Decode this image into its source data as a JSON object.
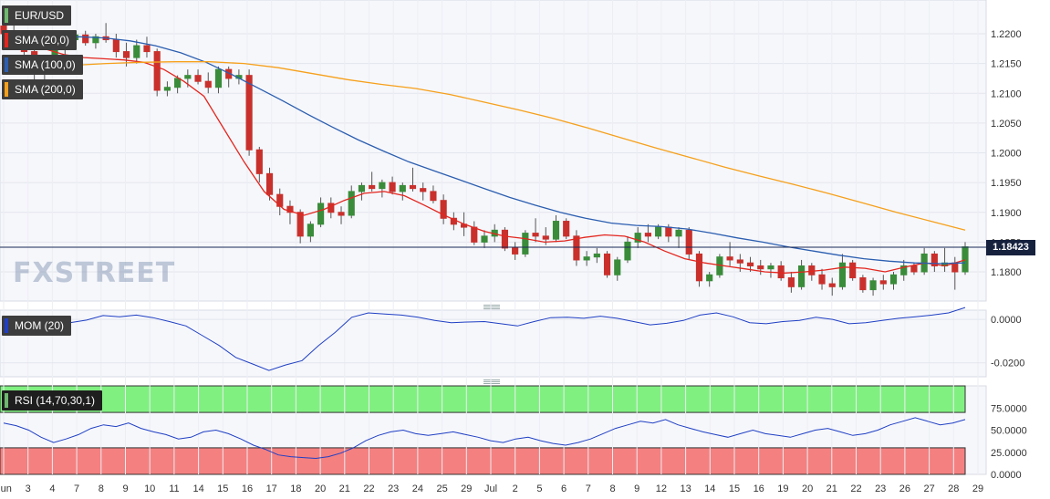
{
  "chart_data": {
    "type": "candlestick",
    "symbol": "EUR/USD",
    "last_price": "1.18423",
    "y_ticks": [
      "1.2200",
      "1.2150",
      "1.2100",
      "1.2050",
      "1.2000",
      "1.1950",
      "1.1900",
      "1.1850",
      "1.1800"
    ],
    "x_labels": [
      "Jun",
      "3",
      "4",
      "7",
      "8",
      "9",
      "10",
      "11",
      "14",
      "15",
      "16",
      "17",
      "18",
      "20",
      "21",
      "22",
      "23",
      "24",
      "25",
      "29",
      "Jul",
      "2",
      "5",
      "6",
      "7",
      "8",
      "9",
      "12",
      "13",
      "14",
      "15",
      "16",
      "19",
      "20",
      "21",
      "22",
      "23",
      "26",
      "27",
      "28",
      "29"
    ],
    "ohlc": [
      [
        1.2213,
        1.2223,
        1.219,
        1.22
      ],
      [
        1.22,
        1.2215,
        1.218,
        1.2195
      ],
      [
        1.2195,
        1.2205,
        1.216,
        1.217
      ],
      [
        1.217,
        1.2185,
        1.212,
        1.2135
      ],
      [
        1.2135,
        1.216,
        1.211,
        1.215
      ],
      [
        1.215,
        1.219,
        1.214,
        1.218
      ],
      [
        1.218,
        1.22,
        1.2165,
        1.219
      ],
      [
        1.219,
        1.2205,
        1.2175,
        1.2198
      ],
      [
        1.2198,
        1.2205,
        1.218,
        1.2185
      ],
      [
        1.2185,
        1.22,
        1.2175,
        1.2195
      ],
      [
        1.2195,
        1.2218,
        1.2185,
        1.219
      ],
      [
        1.219,
        1.22,
        1.216,
        1.217
      ],
      [
        1.217,
        1.2185,
        1.2145,
        1.216
      ],
      [
        1.216,
        1.219,
        1.215,
        1.218
      ],
      [
        1.218,
        1.2195,
        1.216,
        1.217
      ],
      [
        1.217,
        1.2175,
        1.2095,
        1.2105
      ],
      [
        1.2105,
        1.212,
        1.2095,
        1.211
      ],
      [
        1.211,
        1.213,
        1.21,
        1.2125
      ],
      [
        1.2125,
        1.214,
        1.211,
        1.213
      ],
      [
        1.213,
        1.214,
        1.2115,
        1.212
      ],
      [
        1.212,
        1.2135,
        1.21,
        1.211
      ],
      [
        1.211,
        1.2145,
        1.21,
        1.214
      ],
      [
        1.214,
        1.2145,
        1.211,
        1.2125
      ],
      [
        1.2125,
        1.214,
        1.2115,
        1.213
      ],
      [
        1.213,
        1.214,
        1.1995,
        1.2005
      ],
      [
        1.2005,
        1.201,
        1.195,
        1.1965
      ],
      [
        1.1965,
        1.1975,
        1.192,
        1.193
      ],
      [
        1.193,
        1.194,
        1.1895,
        1.191
      ],
      [
        1.191,
        1.192,
        1.188,
        1.19
      ],
      [
        1.19,
        1.1905,
        1.1848,
        1.186
      ],
      [
        1.186,
        1.1885,
        1.185,
        1.188
      ],
      [
        1.188,
        1.1925,
        1.1875,
        1.1915
      ],
      [
        1.1915,
        1.1925,
        1.189,
        1.19
      ],
      [
        1.19,
        1.191,
        1.188,
        1.1895
      ],
      [
        1.1895,
        1.1945,
        1.189,
        1.1935
      ],
      [
        1.1935,
        1.195,
        1.192,
        1.1945
      ],
      [
        1.1945,
        1.1968,
        1.1935,
        1.194
      ],
      [
        1.194,
        1.1955,
        1.1925,
        1.195
      ],
      [
        1.195,
        1.196,
        1.193,
        1.1935
      ],
      [
        1.1935,
        1.195,
        1.192,
        1.1945
      ],
      [
        1.1945,
        1.1975,
        1.1935,
        1.194
      ],
      [
        1.194,
        1.195,
        1.192,
        1.1935
      ],
      [
        1.1935,
        1.1945,
        1.1915,
        1.192
      ],
      [
        1.192,
        1.193,
        1.188,
        1.189
      ],
      [
        1.189,
        1.19,
        1.187,
        1.188
      ],
      [
        1.188,
        1.19,
        1.186,
        1.1875
      ],
      [
        1.1875,
        1.1885,
        1.1845,
        1.185
      ],
      [
        1.185,
        1.187,
        1.184,
        1.186
      ],
      [
        1.186,
        1.188,
        1.185,
        1.187
      ],
      [
        1.187,
        1.1875,
        1.1835,
        1.184
      ],
      [
        1.184,
        1.185,
        1.182,
        1.183
      ],
      [
        1.183,
        1.187,
        1.1825,
        1.1865
      ],
      [
        1.1865,
        1.189,
        1.185,
        1.186
      ],
      [
        1.186,
        1.1875,
        1.1845,
        1.1855
      ],
      [
        1.1855,
        1.1895,
        1.185,
        1.1885
      ],
      [
        1.1885,
        1.189,
        1.1855,
        1.186
      ],
      [
        1.186,
        1.187,
        1.181,
        1.182
      ],
      [
        1.182,
        1.1835,
        1.181,
        1.1825
      ],
      [
        1.1825,
        1.184,
        1.1815,
        1.183
      ],
      [
        1.183,
        1.1835,
        1.179,
        1.1795
      ],
      [
        1.1795,
        1.1825,
        1.1785,
        1.182
      ],
      [
        1.182,
        1.186,
        1.1815,
        1.185
      ],
      [
        1.185,
        1.1875,
        1.184,
        1.1865
      ],
      [
        1.1865,
        1.188,
        1.185,
        1.186
      ],
      [
        1.186,
        1.188,
        1.1855,
        1.1875
      ],
      [
        1.1875,
        1.188,
        1.185,
        1.186
      ],
      [
        1.186,
        1.1875,
        1.184,
        1.187
      ],
      [
        1.187,
        1.1875,
        1.182,
        1.183
      ],
      [
        1.183,
        1.1835,
        1.1775,
        1.1785
      ],
      [
        1.1785,
        1.18,
        1.1775,
        1.1795
      ],
      [
        1.1795,
        1.183,
        1.179,
        1.1825
      ],
      [
        1.1825,
        1.185,
        1.181,
        1.182
      ],
      [
        1.182,
        1.183,
        1.18,
        1.1815
      ],
      [
        1.1815,
        1.1825,
        1.18,
        1.181
      ],
      [
        1.181,
        1.182,
        1.1795,
        1.1805
      ],
      [
        1.1805,
        1.1815,
        1.179,
        1.181
      ],
      [
        1.181,
        1.1818,
        1.1785,
        1.179
      ],
      [
        1.179,
        1.18,
        1.1765,
        1.1775
      ],
      [
        1.1775,
        1.182,
        1.177,
        1.181
      ],
      [
        1.181,
        1.1815,
        1.1785,
        1.1795
      ],
      [
        1.1795,
        1.1805,
        1.177,
        1.178
      ],
      [
        1.178,
        1.179,
        1.176,
        1.1775
      ],
      [
        1.1775,
        1.183,
        1.177,
        1.1815
      ],
      [
        1.1815,
        1.182,
        1.1785,
        1.179
      ],
      [
        1.179,
        1.1795,
        1.1765,
        1.177
      ],
      [
        1.177,
        1.179,
        1.176,
        1.1785
      ],
      [
        1.1785,
        1.1795,
        1.177,
        1.178
      ],
      [
        1.178,
        1.18,
        1.177,
        1.1795
      ],
      [
        1.1795,
        1.182,
        1.1785,
        1.181
      ],
      [
        1.181,
        1.1815,
        1.1795,
        1.18
      ],
      [
        1.18,
        1.184,
        1.1795,
        1.183
      ],
      [
        1.183,
        1.1835,
        1.18,
        1.181
      ],
      [
        1.181,
        1.184,
        1.18,
        1.1815
      ],
      [
        1.1815,
        1.1825,
        1.177,
        1.18
      ],
      [
        1.18,
        1.185,
        1.1795,
        1.1842
      ]
    ],
    "series": [
      {
        "name": "SMA (20,0)",
        "color": "#e3261f",
        "values": [
          1.2205,
          1.219,
          1.2175,
          1.2165,
          1.216,
          1.2158,
          1.2156,
          1.2152,
          1.214,
          1.212,
          1.2095,
          1.204,
          1.1985,
          1.1935,
          1.1905,
          1.1895,
          1.1905,
          1.192,
          1.1932,
          1.1935,
          1.1928,
          1.1912,
          1.1895,
          1.188,
          1.1868,
          1.186,
          1.1856,
          1.185,
          1.1852,
          1.1858,
          1.1862,
          1.186,
          1.185,
          1.1835,
          1.1822,
          1.1815,
          1.181,
          1.1805,
          1.18,
          1.1798,
          1.18,
          1.1803,
          1.1808,
          1.1806,
          1.18,
          1.1808,
          1.1815,
          1.181,
          1.182
        ]
      },
      {
        "name": "SMA (100,0)",
        "color": "#2b5eb0",
        "values": [
          1.218,
          1.2188,
          1.2192,
          1.2195,
          1.2193,
          1.2188,
          1.218,
          1.2168,
          1.2152,
          1.2132,
          1.211,
          1.2088,
          1.2065,
          1.2043,
          1.2022,
          1.2003,
          1.1985,
          1.197,
          1.1955,
          1.194,
          1.1925,
          1.1912,
          1.19,
          1.189,
          1.1882,
          1.1878,
          1.1876,
          1.1872,
          1.1865,
          1.1857,
          1.185,
          1.1842,
          1.1835,
          1.1828,
          1.1822,
          1.1818,
          1.1815,
          1.1814,
          1.1815
        ]
      },
      {
        "name": "SMA (200,0)",
        "color": "#f6a01a",
        "values": [
          1.2137,
          1.2142,
          1.2147,
          1.215,
          1.2152,
          1.2153,
          1.2153,
          1.215,
          1.2143,
          1.2133,
          1.2123,
          1.2115,
          1.2108,
          1.2098,
          1.2085,
          1.2072,
          1.2058,
          1.2042,
          1.2025,
          1.2008,
          1.1992,
          1.1976,
          1.1961,
          1.1947,
          1.1932,
          1.1916,
          1.19,
          1.1885,
          1.187
        ]
      }
    ],
    "momentum": {
      "label": "MOM (20)",
      "y_ticks": [
        "0.0000",
        "-0.0200"
      ],
      "values": [
        0.0012,
        0.0005,
        -0.0008,
        -0.0022,
        -0.0015,
        -0.0003,
        0.0018,
        0.0012,
        0.002,
        0.0008,
        -0.001,
        -0.003,
        -0.0075,
        -0.012,
        -0.0175,
        -0.0205,
        -0.0235,
        -0.021,
        -0.019,
        -0.012,
        -0.006,
        0.001,
        0.003,
        0.0025,
        0.002,
        0.001,
        -0.0005,
        -0.0015,
        -0.0012,
        -0.001,
        -0.002,
        -0.003,
        -0.001,
        0.0008,
        0.001,
        0.0005,
        0.0015,
        0.0005,
        -0.001,
        -0.0025,
        -0.0018,
        -0.0005,
        0.002,
        0.003,
        0.0012,
        -0.0015,
        -0.002,
        -0.001,
        -0.0005,
        0.001,
        0.0,
        -0.002,
        -0.0015,
        -0.0005,
        0.0005,
        0.0012,
        0.002,
        0.003,
        0.0055
      ]
    },
    "rsi": {
      "label": "RSI (14,70,30,1)",
      "y_ticks": [
        "75.0000",
        "50.0000",
        "25.0000",
        "0.0000"
      ],
      "overbought": 70,
      "oversold": 30,
      "values": [
        58,
        55,
        50,
        42,
        36,
        40,
        45,
        52,
        56,
        54,
        58,
        52,
        48,
        45,
        40,
        42,
        48,
        50,
        46,
        40,
        33,
        28,
        22,
        20,
        19,
        18,
        20,
        24,
        30,
        38,
        44,
        48,
        50,
        46,
        44,
        46,
        48,
        45,
        42,
        38,
        36,
        40,
        42,
        38,
        35,
        33,
        36,
        40,
        46,
        52,
        56,
        60,
        58,
        62,
        56,
        52,
        48,
        45,
        42,
        46,
        50,
        46,
        44,
        42,
        46,
        50,
        52,
        48,
        44,
        46,
        50,
        56,
        60,
        64,
        60,
        56,
        58,
        62
      ]
    }
  },
  "legend": {
    "pair": "EUR/USD",
    "sma20": "SMA (20,0)",
    "sma100": "SMA (100,0)",
    "sma200": "SMA (200,0)"
  },
  "watermark": "FXSTREET",
  "colors": {
    "up": "#3a8c3a",
    "down": "#c9302c",
    "mom": "#1f3fc4",
    "rsi": "#1f3fc4",
    "overbought_fill": "#80f080",
    "oversold_fill": "#f48080"
  }
}
